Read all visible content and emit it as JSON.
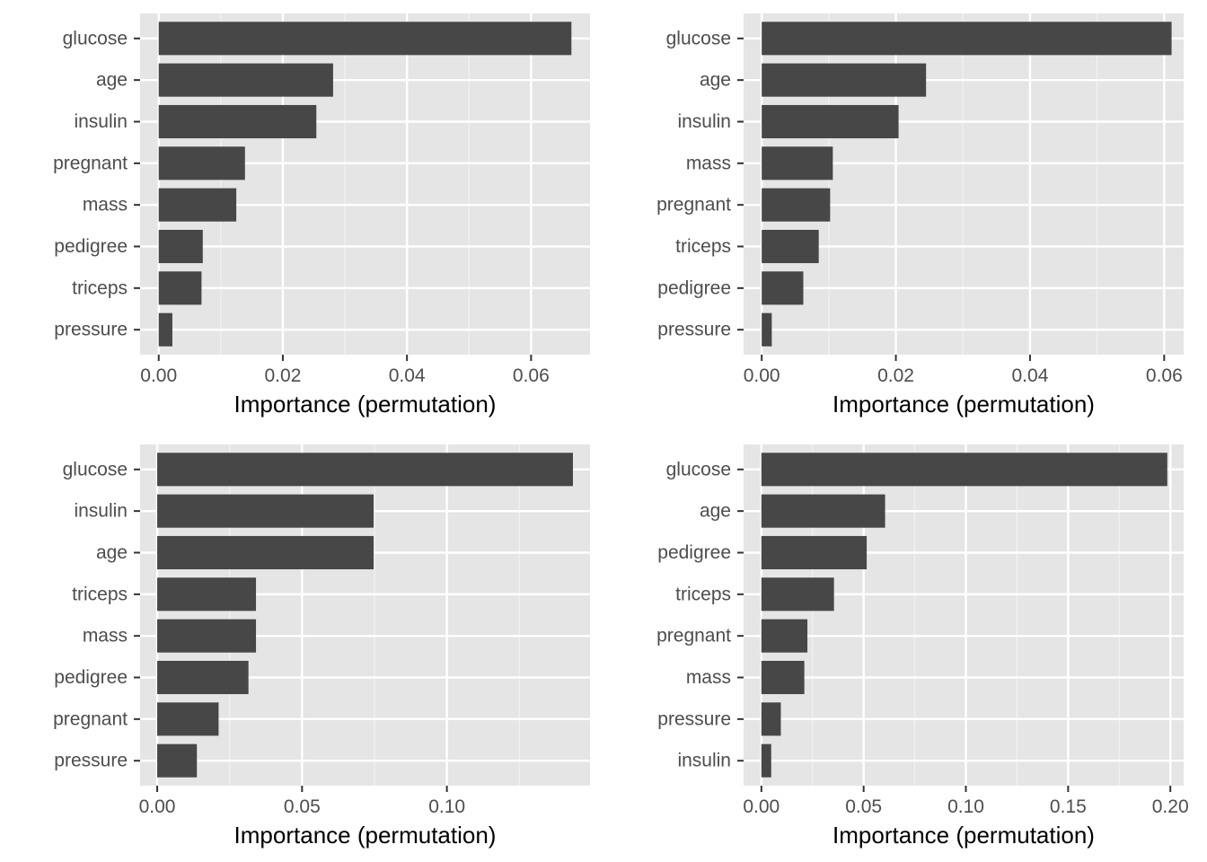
{
  "chart_data": [
    {
      "type": "bar",
      "orientation": "horizontal",
      "categories": [
        "glucose",
        "age",
        "insulin",
        "pregnant",
        "mass",
        "pedigree",
        "triceps",
        "pressure"
      ],
      "values": [
        0.0665,
        0.0281,
        0.0254,
        0.0139,
        0.0125,
        0.0071,
        0.0069,
        0.0022
      ],
      "xlabel": "Importance (permutation)",
      "ylabel": "",
      "xlim": [
        -0.003,
        0.0695
      ],
      "xticks": [
        0,
        0.02,
        0.04,
        0.06
      ],
      "xtick_labels": [
        "0.00",
        "0.02",
        "0.04",
        "0.06"
      ],
      "bar_color": "#474747",
      "panel_bg": "#e5e5e5",
      "grid": true
    },
    {
      "type": "bar",
      "orientation": "horizontal",
      "categories": [
        "glucose",
        "age",
        "insulin",
        "mass",
        "pregnant",
        "triceps",
        "pedigree",
        "pressure"
      ],
      "values": [
        0.0611,
        0.0245,
        0.0204,
        0.0106,
        0.0102,
        0.0085,
        0.0062,
        0.0015
      ],
      "xlabel": "Importance (permutation)",
      "ylabel": "",
      "xlim": [
        -0.0027,
        0.0629
      ],
      "xticks": [
        0,
        0.02,
        0.04,
        0.06
      ],
      "xtick_labels": [
        "0.00",
        "0.02",
        "0.04",
        "0.06"
      ],
      "bar_color": "#474747",
      "panel_bg": "#e5e5e5",
      "grid": true
    },
    {
      "type": "bar",
      "orientation": "horizontal",
      "categories": [
        "glucose",
        "insulin",
        "age",
        "triceps",
        "mass",
        "pedigree",
        "pregnant",
        "pressure"
      ],
      "values": [
        0.1435,
        0.0747,
        0.0747,
        0.0341,
        0.0341,
        0.0315,
        0.0212,
        0.0137
      ],
      "xlabel": "Importance (permutation)",
      "ylabel": "",
      "xlim": [
        -0.0059,
        0.1494
      ],
      "xticks": [
        0,
        0.05,
        0.1
      ],
      "xtick_labels": [
        "0.00",
        "0.05",
        "0.10"
      ],
      "bar_color": "#474747",
      "panel_bg": "#e5e5e5",
      "grid": true
    },
    {
      "type": "bar",
      "orientation": "horizontal",
      "categories": [
        "glucose",
        "age",
        "pedigree",
        "triceps",
        "pregnant",
        "mass",
        "pressure",
        "insulin"
      ],
      "values": [
        0.1985,
        0.0605,
        0.0515,
        0.0355,
        0.0225,
        0.021,
        0.0095,
        0.0048
      ],
      "xlabel": "Importance (permutation)",
      "ylabel": "",
      "xlim": [
        -0.0087,
        0.2065
      ],
      "xticks": [
        0,
        0.05,
        0.1,
        0.15,
        0.2
      ],
      "xtick_labels": [
        "0.00",
        "0.05",
        "0.10",
        "0.15",
        "0.20"
      ],
      "bar_color": "#474747",
      "panel_bg": "#e5e5e5",
      "grid": true
    }
  ]
}
